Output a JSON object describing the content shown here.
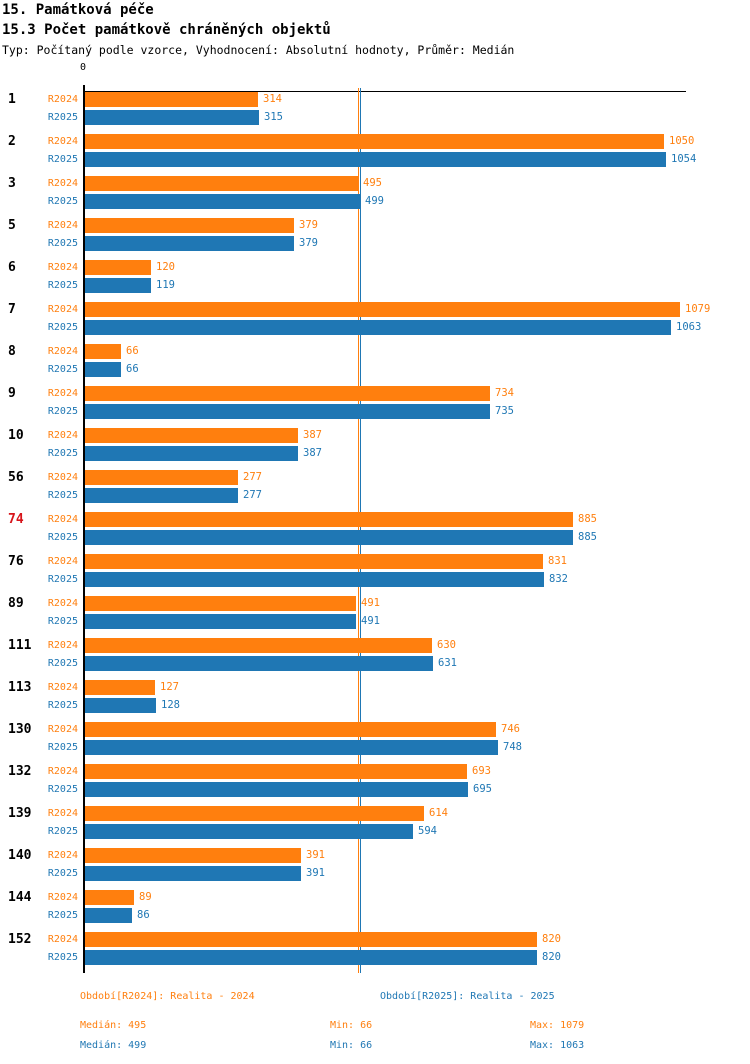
{
  "header": {
    "title1": "15. Památková péče",
    "title2": "15.3 Počet památkově chráněných objektů",
    "subtitle": "Typ: Počítaný podle vzorce, Vyhodnocení: Absolutní hodnoty, Průměr: Medián"
  },
  "axis": {
    "zero_label": "0"
  },
  "colors": {
    "r2024": "#ff7f0e",
    "r2025": "#1f77b4",
    "highlight": "#d7141a",
    "axis": "#000000"
  },
  "chart_data": {
    "type": "bar",
    "orientation": "horizontal",
    "title": "15.3 Počet památkově chráněných objektů",
    "categories": [
      "1",
      "2",
      "3",
      "5",
      "6",
      "7",
      "8",
      "9",
      "10",
      "56",
      "74",
      "76",
      "89",
      "111",
      "113",
      "130",
      "132",
      "139",
      "140",
      "144",
      "152"
    ],
    "highlighted_category": "74",
    "xlim": [
      0,
      1090
    ],
    "grid": false,
    "series": [
      {
        "name": "R2024",
        "color": "#ff7f0e",
        "values": [
          314,
          1050,
          495,
          379,
          120,
          1079,
          66,
          734,
          387,
          277,
          885,
          831,
          491,
          630,
          127,
          746,
          693,
          614,
          391,
          89,
          820
        ],
        "median": 495,
        "min": 66,
        "max": 1079
      },
      {
        "name": "R2025",
        "color": "#1f77b4",
        "values": [
          315,
          1054,
          499,
          379,
          119,
          1063,
          66,
          735,
          387,
          277,
          885,
          832,
          491,
          631,
          128,
          748,
          695,
          594,
          391,
          86,
          820
        ],
        "median": 499,
        "min": 66,
        "max": 1063
      }
    ]
  },
  "footer": {
    "period_r2024": "Období[R2024]: Realita - 2024",
    "period_r2025": "Období[R2025]: Realita - 2025",
    "stats_r2024": {
      "median": "Medián: 495",
      "min": "Min: 66",
      "max": "Max: 1079"
    },
    "stats_r2025": {
      "median": "Medián: 499",
      "min": "Min: 66",
      "max": "Max: 1063"
    }
  }
}
